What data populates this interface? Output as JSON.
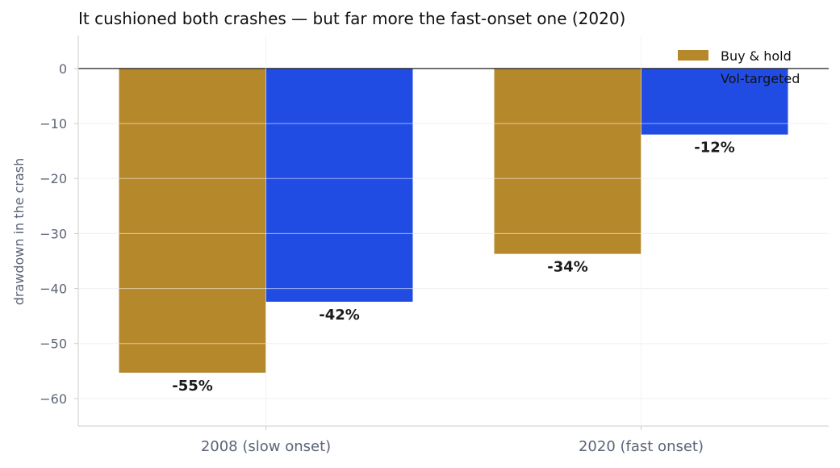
{
  "chart_data": {
    "type": "bar",
    "title": "It cushioned both crashes — but far more the fast-onset one (2020)",
    "xlabel": "",
    "ylabel": "drawdown in the crash",
    "categories": [
      "2008 (slow onset)",
      "2020 (fast onset)"
    ],
    "series": [
      {
        "name": "Buy & hold",
        "values": [
          -55.3,
          -33.7
        ],
        "labels": [
          "-55%",
          "-34%"
        ],
        "color": "#b5892b"
      },
      {
        "name": "Vol-targeted",
        "values": [
          -42.4,
          -12.0
        ],
        "labels": [
          "-42%",
          "-12%"
        ],
        "color": "#214ce3"
      }
    ],
    "ylim": [
      -65,
      6
    ],
    "yticks": [
      0,
      -10,
      -20,
      -30,
      -40,
      -50,
      -60
    ],
    "ytick_labels": [
      "0",
      "−10",
      "−20",
      "−30",
      "−40",
      "−50",
      "−60"
    ],
    "grid": true,
    "legend_position": "top-right"
  }
}
